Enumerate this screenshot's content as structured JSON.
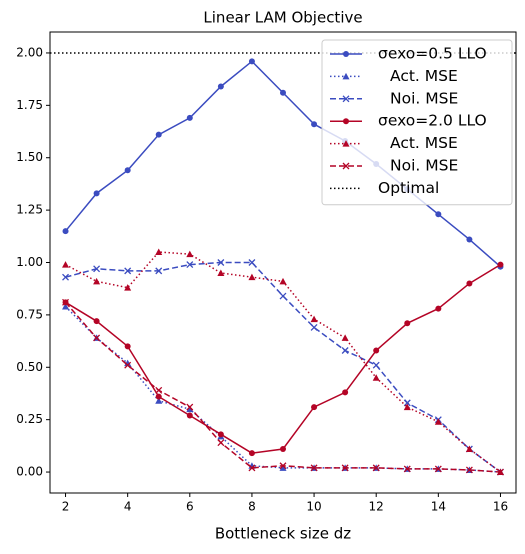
{
  "chart_data": {
    "type": "line",
    "title": "Linear LAM Objective",
    "x_label": "Bottleneck size dz",
    "x": [
      2,
      3,
      4,
      5,
      6,
      7,
      8,
      9,
      10,
      11,
      12,
      13,
      14,
      15,
      16
    ],
    "xlim": [
      1.5,
      16.5
    ],
    "xticks": [
      2,
      4,
      6,
      8,
      10,
      12,
      14,
      16
    ],
    "ylim": [
      -0.1,
      2.1
    ],
    "yticks": [
      {
        "value": 0,
        "label": "0.00"
      },
      {
        "value": 0.25,
        "label": "0.25"
      },
      {
        "value": 0.5,
        "label": "0.50"
      },
      {
        "value": 0.75,
        "label": "0.75"
      },
      {
        "value": 1.0,
        "label": "1.00"
      },
      {
        "value": 1.25,
        "label": "1.25"
      },
      {
        "value": 1.5,
        "label": "1.50"
      },
      {
        "value": 1.75,
        "label": "1.75"
      },
      {
        "value": 2.0,
        "label": "2.00"
      }
    ],
    "legend": "upper right",
    "series": [
      {
        "name": "σexo=0.5 LLO",
        "color": "#3b4cc0",
        "linestyle": "solid",
        "marker": "o",
        "values": [
          1.15,
          1.33,
          1.44,
          1.61,
          1.69,
          1.84,
          1.96,
          1.81,
          1.66,
          1.58,
          1.47,
          1.35,
          1.23,
          1.11,
          0.98
        ]
      },
      {
        "name": "Act. MSE",
        "color": "#3b4cc0",
        "linestyle": "dotted",
        "marker": "^",
        "values": [
          0.79,
          0.64,
          0.52,
          0.34,
          0.3,
          0.17,
          0.03,
          0.02,
          0.02,
          0.02,
          0.02,
          0.015,
          0.015,
          0.01,
          0.0
        ]
      },
      {
        "name": "Noi. MSE",
        "color": "#3b4cc0",
        "linestyle": "dashed",
        "marker": "x",
        "values": [
          0.93,
          0.97,
          0.96,
          0.96,
          0.99,
          1.0,
          1.0,
          0.84,
          0.69,
          0.58,
          0.51,
          0.33,
          0.25,
          0.11,
          0.0
        ]
      },
      {
        "name": "σexo=2.0 LLO",
        "color": "#b40426",
        "linestyle": "solid",
        "marker": "o",
        "values": [
          0.81,
          0.72,
          0.6,
          0.36,
          0.27,
          0.18,
          0.09,
          0.11,
          0.31,
          0.38,
          0.58,
          0.71,
          0.78,
          0.9,
          0.99
        ]
      },
      {
        "name": "Act. MSE",
        "color": "#b40426",
        "linestyle": "dotted",
        "marker": "^",
        "values": [
          0.99,
          0.91,
          0.88,
          1.05,
          1.04,
          0.95,
          0.93,
          0.91,
          0.73,
          0.64,
          0.45,
          0.31,
          0.24,
          0.11,
          0.0
        ]
      },
      {
        "name": "Noi. MSE",
        "color": "#b40426",
        "linestyle": "dashed",
        "marker": "x",
        "values": [
          0.81,
          0.64,
          0.51,
          0.39,
          0.31,
          0.14,
          0.02,
          0.03,
          0.02,
          0.02,
          0.02,
          0.015,
          0.015,
          0.01,
          0.0
        ]
      }
    ],
    "reference_line": {
      "name": "Optimal",
      "value": 2.0,
      "color": "#000000",
      "linestyle": "dotted"
    }
  }
}
